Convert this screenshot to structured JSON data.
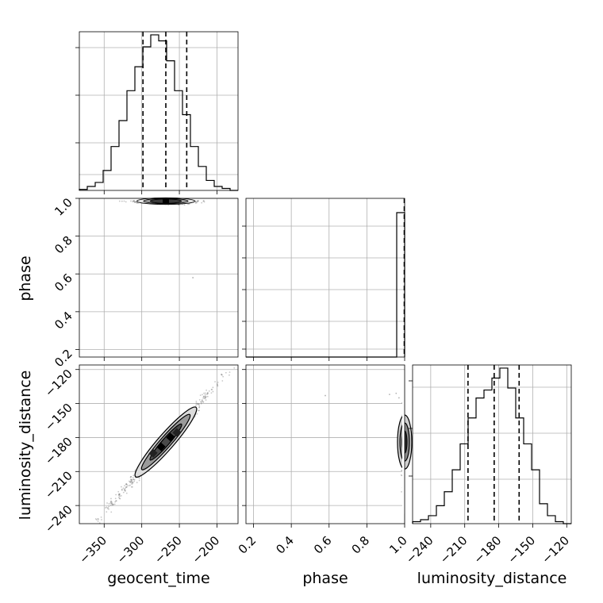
{
  "chart_data": {
    "type": "corner",
    "parameters": [
      "geocent_time",
      "phase",
      "luminosity_distance"
    ],
    "axis_labels": [
      "geocent_time",
      "phase",
      "luminosity_distance"
    ],
    "ranges": {
      "geocent_time": [
        -383,
        -172
      ],
      "phase": [
        0.16,
        1.0
      ],
      "luminosity_distance": [
        -256,
        -116
      ]
    },
    "ticks": {
      "geocent_time": [
        -350,
        -300,
        -250,
        -200
      ],
      "phase_x": [
        0.2,
        0.4,
        0.6,
        0.8,
        1.0
      ],
      "phase_y": [
        0.2,
        0.4,
        0.6,
        0.8,
        1.0
      ],
      "luminosity_distance_y": [
        -120,
        -150,
        -180,
        -210,
        -240
      ],
      "luminosity_distance_x": [
        -240,
        -210,
        -180,
        -150,
        -120
      ]
    },
    "tick_labels": {
      "geocent_time": [
        "−350",
        "−300",
        "−250",
        "−200"
      ],
      "phase_x": [
        "0.2",
        "0.4",
        "0.6",
        "0.8",
        "1.0"
      ],
      "phase_y": [
        "0.2",
        "0.4",
        "0.6",
        "0.8",
        "1.0"
      ],
      "luminosity_distance_y": [
        "−120",
        "−150",
        "−180",
        "−210",
        "−240"
      ],
      "luminosity_distance_x": [
        "−240",
        "−210",
        "−180",
        "−150",
        "−120"
      ]
    },
    "histograms": {
      "geocent_time": {
        "bin_edges": [
          -383,
          -372.45,
          -361.9,
          -351.35,
          -340.8,
          -330.25,
          -319.7,
          -309.15,
          -298.6,
          -288.05,
          -277.5,
          -266.95,
          -256.4,
          -245.85,
          -235.3,
          -224.75,
          -214.2,
          -203.65,
          -193.1,
          -182.55,
          -172
        ],
        "counts": [
          0.5,
          2,
          4,
          10,
          22,
          35,
          50,
          62,
          72,
          78,
          75,
          65,
          50,
          38,
          22,
          12,
          5,
          2,
          1,
          0
        ],
        "quantiles": [
          -298.4,
          -268.0,
          -240.2
        ]
      },
      "phase": {
        "bin_edges": [
          0.16,
          0.202,
          0.244,
          0.286,
          0.328,
          0.37,
          0.412,
          0.454,
          0.496,
          0.538,
          0.58,
          0.622,
          0.664,
          0.706,
          0.748,
          0.79,
          0.832,
          0.874,
          0.916,
          0.958,
          1.0
        ],
        "counts": [
          0,
          0,
          0,
          0,
          0,
          0,
          0,
          0,
          0,
          0,
          0,
          0,
          0,
          0,
          0,
          0,
          0,
          0,
          0,
          480
        ],
        "quantiles": [
          0.998
        ]
      },
      "luminosity_distance": {
        "bin_edges": [
          -256,
          -249,
          -242,
          -235,
          -228,
          -221,
          -214,
          -207,
          -200,
          -193,
          -186,
          -179,
          -172,
          -165,
          -158,
          -151,
          -144,
          -137,
          -130,
          -123,
          -116
        ],
        "counts": [
          1,
          2,
          4,
          9,
          16,
          27,
          40,
          53,
          63,
          67,
          73,
          78,
          68,
          53,
          40,
          27,
          10,
          4,
          1,
          0
        ],
        "quantiles": [
          -207.1,
          -184.0,
          -162.0
        ]
      }
    },
    "joint": {
      "geocent_time_vs_phase": {
        "center": [
          -268,
          0.985
        ],
        "spread": [
          22,
          0.008
        ]
      },
      "geocent_time_vs_luminosity_distance": {
        "center": [
          -268,
          -184
        ],
        "slope": 0.76,
        "spread_along": 30,
        "spread_across": 3
      },
      "phase_vs_luminosity_distance": {
        "center": [
          0.995,
          -184
        ],
        "spread": [
          0.004,
          14
        ]
      }
    },
    "grid": true,
    "legend": "none"
  }
}
